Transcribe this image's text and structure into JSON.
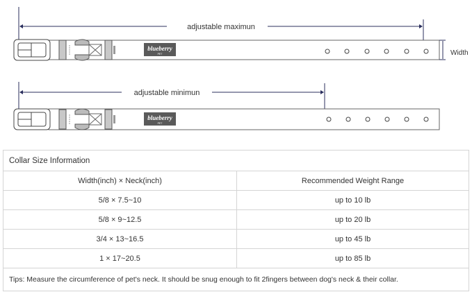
{
  "diagram": {
    "max_label": "adjustable maximun",
    "min_label": "adjustable minimun",
    "width_label": "Width",
    "brand_logo": "blueberry PET",
    "brand_color": "#5a5a5a",
    "line_color": "#2b2f5e"
  },
  "table": {
    "title": "Collar Size Information",
    "headers": [
      "Width(inch)  ×  Neck(inch)",
      "Recommended Weight Range"
    ],
    "rows": [
      [
        "5/8 × 7.5~10",
        "up to 10 lb"
      ],
      [
        "5/8 × 9~12.5",
        "up to 20 lb"
      ],
      [
        "3/4 × 13~16.5",
        "up to 45 lb"
      ],
      [
        "1 × 17~20.5",
        "up to 85 lb"
      ]
    ],
    "tips": "Tips: Measure the circumference of pet's neck. It should be snug enough to fit 2fingers between dog's neck & their collar."
  }
}
